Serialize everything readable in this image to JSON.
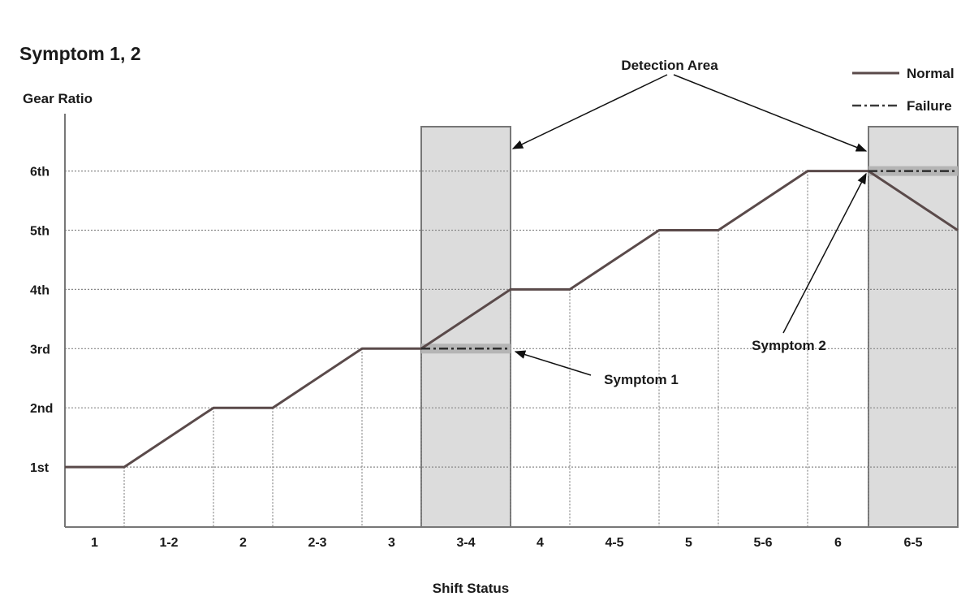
{
  "chart_data": {
    "type": "line",
    "title": "Symptom 1, 2",
    "ylabel": "Gear Ratio",
    "xlabel": "Shift Status",
    "y_ticks": [
      "1st",
      "2nd",
      "3rd",
      "4th",
      "5th",
      "6th"
    ],
    "x_ticks": [
      "1",
      "1-2",
      "2",
      "2-3",
      "3",
      "3-4",
      "4",
      "4-5",
      "5",
      "5-6",
      "6",
      "6-5"
    ],
    "grid": "dotted",
    "legend_position": "top-right",
    "series": [
      {
        "name": "Normal",
        "style": "solid",
        "points": [
          [
            "1",
            1
          ],
          [
            "1-2",
            1
          ],
          [
            "2",
            2
          ],
          [
            "2-3",
            2
          ],
          [
            "3",
            3
          ],
          [
            "3-4",
            3
          ],
          [
            "4",
            4
          ],
          [
            "4-5",
            4
          ],
          [
            "5",
            5
          ],
          [
            "5-6",
            5
          ],
          [
            "6",
            6
          ],
          [
            "6-5",
            6
          ],
          [
            "end",
            5
          ]
        ]
      },
      {
        "name": "Failure",
        "style": "dash-dot",
        "segments": [
          [
            [
              "3-4",
              3
            ],
            [
              "4",
              3
            ]
          ],
          [
            [
              "6-5",
              6
            ],
            [
              "end",
              6
            ]
          ]
        ]
      }
    ],
    "detection_areas": [
      "3-4",
      "6-5"
    ],
    "annotations": {
      "detection_area": "Detection Area",
      "symptom_1": "Symptom 1",
      "symptom_2": "Symptom 2"
    },
    "colors": {
      "line": "#5a4a4a",
      "area": "#dcdcdc",
      "area_border": "#777777"
    }
  }
}
